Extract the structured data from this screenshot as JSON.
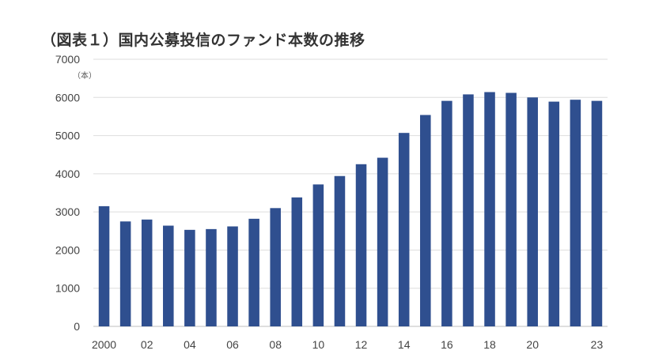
{
  "chart_data": {
    "type": "bar",
    "title": "（図表１）国内公募投信のファンド本数の推移",
    "unit_label": "（本）",
    "xlabel": "",
    "ylabel": "",
    "ylim": [
      0,
      7000
    ],
    "yticks": [
      0,
      1000,
      2000,
      3000,
      4000,
      5000,
      6000,
      7000
    ],
    "grid": true,
    "legend": "none",
    "bar_color": "#2f4f8f",
    "categories": [
      "2000",
      "01",
      "02",
      "03",
      "04",
      "05",
      "06",
      "07",
      "08",
      "09",
      "10",
      "11",
      "12",
      "13",
      "14",
      "15",
      "16",
      "17",
      "18",
      "19",
      "20",
      "21",
      "22",
      "23"
    ],
    "category_labels": [
      "2000",
      "",
      "02",
      "",
      "04",
      "",
      "06",
      "",
      "08",
      "",
      "10",
      "",
      "12",
      "",
      "14",
      "",
      "16",
      "",
      "18",
      "",
      "20",
      "",
      "",
      "23"
    ],
    "values": [
      3150,
      2750,
      2800,
      2640,
      2530,
      2550,
      2620,
      2820,
      3100,
      3380,
      3720,
      3940,
      4250,
      4420,
      5070,
      5540,
      5910,
      6080,
      6140,
      6120,
      6000,
      5890,
      5940,
      5910
    ]
  }
}
